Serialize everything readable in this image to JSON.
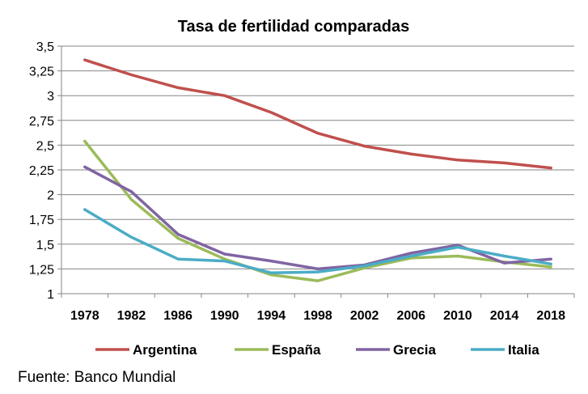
{
  "chart_data": {
    "type": "line",
    "title": "Tasa de fertilidad comparadas",
    "xlabel": "",
    "ylabel": "",
    "categories": [
      "1978",
      "1982",
      "1986",
      "1990",
      "1994",
      "1998",
      "2002",
      "2006",
      "2010",
      "2014",
      "2018"
    ],
    "ylim": [
      1,
      3.5
    ],
    "yticks": [
      "1",
      "1,25",
      "1,5",
      "1,75",
      "2",
      "2,25",
      "2,5",
      "2,75",
      "3",
      "3,25",
      "3,5"
    ],
    "grid": true,
    "legend_position": "bottom",
    "series": [
      {
        "name": "Argentina",
        "color": "#C0504D",
        "values": [
          3.36,
          3.21,
          3.08,
          3.0,
          2.83,
          2.62,
          2.49,
          2.41,
          2.35,
          2.32,
          2.27
        ]
      },
      {
        "name": "España",
        "color": "#9BBB59",
        "values": [
          2.54,
          1.95,
          1.56,
          1.35,
          1.19,
          1.13,
          1.26,
          1.36,
          1.38,
          1.32,
          1.27
        ]
      },
      {
        "name": "Grecia",
        "color": "#8064A2",
        "values": [
          2.28,
          2.03,
          1.6,
          1.4,
          1.33,
          1.25,
          1.29,
          1.41,
          1.49,
          1.31,
          1.35
        ]
      },
      {
        "name": "Italia",
        "color": "#4BACC6",
        "values": [
          1.85,
          1.57,
          1.35,
          1.33,
          1.21,
          1.22,
          1.28,
          1.38,
          1.47,
          1.38,
          1.3
        ]
      }
    ]
  },
  "source": "Fuente: Banco Mundial"
}
